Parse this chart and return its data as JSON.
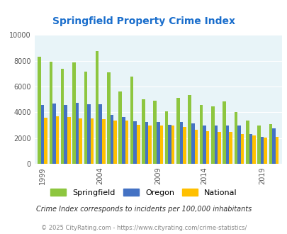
{
  "title": "Springfield Property Crime Index",
  "title_color": "#1a6ecc",
  "subtitle": "Crime Index corresponds to incidents per 100,000 inhabitants",
  "footer": "© 2025 CityRating.com - https://www.cityrating.com/crime-statistics/",
  "years": [
    1999,
    2000,
    2001,
    2002,
    2003,
    2004,
    2005,
    2006,
    2007,
    2008,
    2009,
    2011,
    2012,
    2013,
    2014,
    2015,
    2016,
    2017,
    2018,
    2019,
    2020
  ],
  "springfield": [
    8300,
    7950,
    7400,
    7900,
    7150,
    8750,
    7100,
    5600,
    6750,
    5000,
    4900,
    4100,
    5100,
    5350,
    4550,
    4450,
    4850,
    4000,
    3350,
    3000,
    3100
  ],
  "oregon": [
    4550,
    4700,
    4600,
    4750,
    4650,
    4650,
    3800,
    3650,
    3300,
    3250,
    3250,
    3050,
    3250,
    3150,
    2950,
    3000,
    3000,
    2950,
    2300,
    2100,
    2750
  ],
  "national": [
    3600,
    3700,
    3650,
    3550,
    3500,
    3450,
    3350,
    3350,
    3050,
    3000,
    3000,
    2950,
    2850,
    2650,
    2550,
    2500,
    2500,
    2300,
    2200,
    2050,
    2100
  ],
  "bar_colors": [
    "#8dc63f",
    "#4472c4",
    "#ffc000"
  ],
  "bg_color": "#e8f4f8",
  "ylim": [
    0,
    10000
  ],
  "yticks": [
    0,
    2000,
    4000,
    6000,
    8000,
    10000
  ],
  "tick_years": [
    1999,
    2004,
    2009,
    2014,
    2019
  ],
  "legend_labels": [
    "Springfield",
    "Oregon",
    "National"
  ],
  "bar_width": 0.28
}
